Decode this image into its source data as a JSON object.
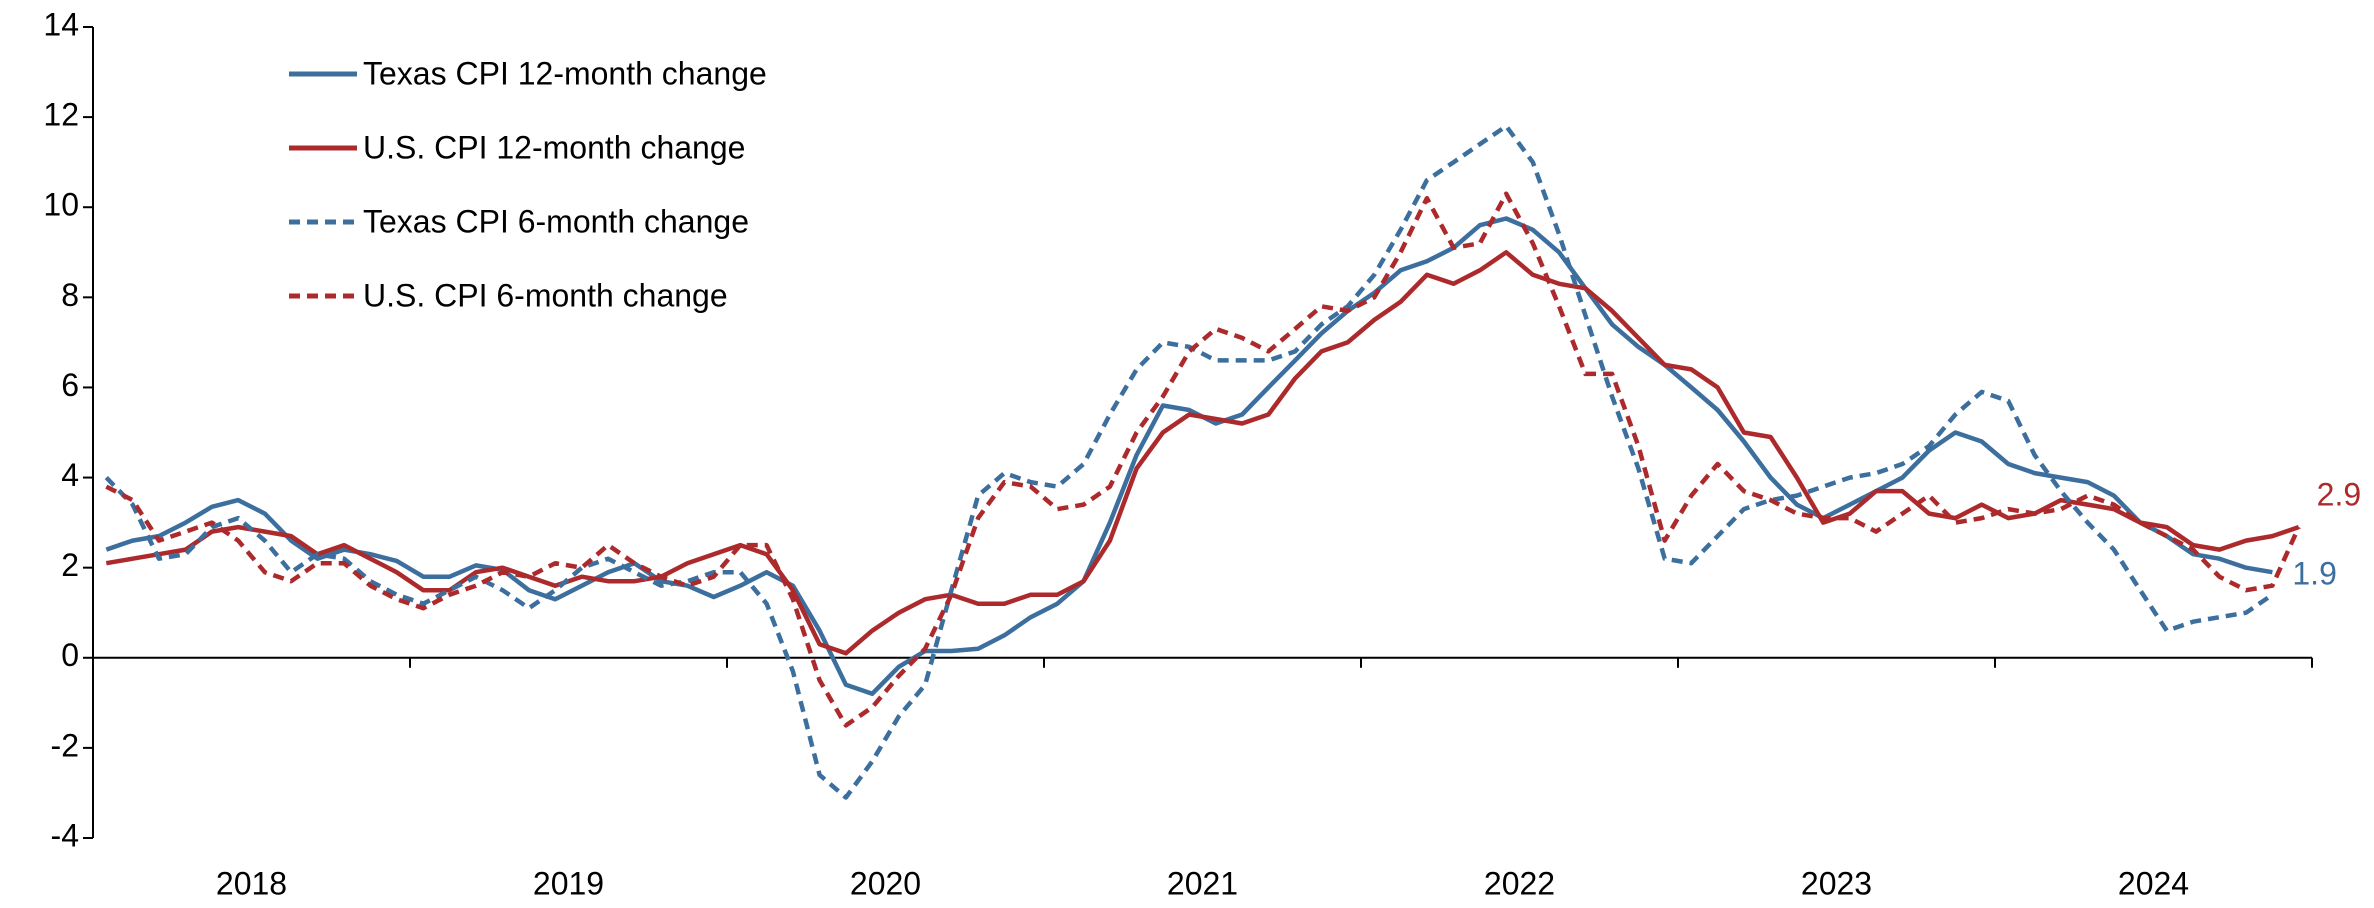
{
  "chart_data": {
    "type": "line",
    "x": [
      2018.042,
      2018.125,
      2018.208,
      2018.292,
      2018.375,
      2018.458,
      2018.542,
      2018.625,
      2018.708,
      2018.792,
      2018.875,
      2018.958,
      2019.042,
      2019.125,
      2019.208,
      2019.292,
      2019.375,
      2019.458,
      2019.542,
      2019.625,
      2019.708,
      2019.792,
      2019.875,
      2019.958,
      2020.042,
      2020.125,
      2020.208,
      2020.292,
      2020.375,
      2020.458,
      2020.542,
      2020.625,
      2020.708,
      2020.792,
      2020.875,
      2020.958,
      2021.042,
      2021.125,
      2021.208,
      2021.292,
      2021.375,
      2021.458,
      2021.542,
      2021.625,
      2021.708,
      2021.792,
      2021.875,
      2021.958,
      2022.042,
      2022.125,
      2022.208,
      2022.292,
      2022.375,
      2022.458,
      2022.542,
      2022.625,
      2022.708,
      2022.792,
      2022.875,
      2022.958,
      2023.042,
      2023.125,
      2023.208,
      2023.292,
      2023.375,
      2023.458,
      2023.542,
      2023.625,
      2023.708,
      2023.792,
      2023.875,
      2023.958,
      2024.042,
      2024.125,
      2024.208,
      2024.292,
      2024.375,
      2024.458,
      2024.542,
      2024.625,
      2024.708,
      2024.792,
      2024.875,
      2024.958
    ],
    "xlim": [
      2018,
      2025
    ],
    "xticks": [
      2018,
      2019,
      2020,
      2021,
      2022,
      2023,
      2024,
      2025
    ],
    "xtick_labels": [
      {
        "value": 2018.5,
        "label": "2018"
      },
      {
        "value": 2019.5,
        "label": "2019"
      },
      {
        "value": 2020.5,
        "label": "2020"
      },
      {
        "value": 2021.5,
        "label": "2021"
      },
      {
        "value": 2022.5,
        "label": "2022"
      },
      {
        "value": 2023.5,
        "label": "2023"
      },
      {
        "value": 2024.5,
        "label": "2024"
      }
    ],
    "ylim": [
      -4,
      14
    ],
    "yticks": [
      -4,
      -2,
      0,
      2,
      4,
      6,
      8,
      10,
      12,
      14
    ],
    "legend": "top-left",
    "series": [
      {
        "name": "Texas CPI 12-month change",
        "color": "#3d6f9e",
        "dashed": false,
        "end_label": "1.9",
        "values": [
          2.4,
          2.6,
          2.7,
          3.0,
          3.35,
          3.5,
          3.2,
          2.6,
          2.2,
          2.4,
          2.3,
          2.15,
          1.8,
          1.8,
          2.05,
          1.95,
          1.5,
          1.3,
          1.6,
          1.9,
          2.1,
          1.7,
          1.6,
          1.35,
          1.6,
          1.9,
          1.6,
          0.6,
          -0.6,
          -0.8,
          -0.2,
          0.15,
          0.15,
          0.2,
          0.5,
          0.9,
          1.2,
          1.7,
          3.0,
          4.5,
          5.6,
          5.5,
          5.2,
          5.4,
          6.0,
          6.6,
          7.2,
          7.7,
          8.1,
          8.6,
          8.8,
          9.1,
          9.6,
          9.75,
          9.5,
          9.0,
          8.2,
          7.4,
          6.9,
          6.5,
          6.0,
          5.5,
          4.8,
          4.0,
          3.4,
          3.1,
          3.4,
          3.7,
          4.0,
          4.6,
          5.0,
          4.8,
          4.3,
          4.1,
          4.0,
          3.9,
          3.6,
          3.0,
          2.7,
          2.3,
          2.2,
          2.0,
          1.9,
          null
        ]
      },
      {
        "name": "U.S. CPI 12-month change",
        "color": "#ad2a2c",
        "dashed": false,
        "end_label": "2.9",
        "values": [
          2.1,
          2.2,
          2.3,
          2.4,
          2.8,
          2.9,
          2.8,
          2.7,
          2.3,
          2.5,
          2.2,
          1.9,
          1.5,
          1.5,
          1.9,
          2.0,
          1.8,
          1.6,
          1.8,
          1.7,
          1.7,
          1.8,
          2.1,
          2.3,
          2.5,
          2.3,
          1.5,
          0.3,
          0.1,
          0.6,
          1.0,
          1.3,
          1.4,
          1.2,
          1.2,
          1.4,
          1.4,
          1.7,
          2.6,
          4.2,
          5.0,
          5.4,
          5.3,
          5.2,
          5.4,
          6.2,
          6.8,
          7.0,
          7.5,
          7.9,
          8.5,
          8.3,
          8.6,
          9.0,
          8.5,
          8.3,
          8.2,
          7.7,
          7.1,
          6.5,
          6.4,
          6.0,
          5.0,
          4.9,
          4.0,
          3.0,
          3.2,
          3.7,
          3.7,
          3.2,
          3.1,
          3.4,
          3.1,
          3.2,
          3.5,
          3.4,
          3.3,
          3.0,
          2.9,
          2.5,
          2.4,
          2.6,
          2.7,
          2.9
        ]
      },
      {
        "name": "Texas CPI 6-month change",
        "color": "#3d6f9e",
        "dashed": true,
        "values": [
          4.0,
          3.4,
          2.2,
          2.3,
          2.9,
          3.1,
          2.6,
          1.9,
          2.3,
          2.2,
          1.7,
          1.4,
          1.2,
          1.5,
          1.8,
          1.5,
          1.1,
          1.5,
          2.0,
          2.2,
          1.9,
          1.6,
          1.7,
          1.9,
          1.9,
          1.2,
          -0.3,
          -2.6,
          -3.1,
          -2.3,
          -1.3,
          -0.6,
          1.5,
          3.6,
          4.1,
          3.9,
          3.8,
          4.3,
          5.4,
          6.4,
          7.0,
          6.9,
          6.6,
          6.6,
          6.6,
          6.8,
          7.4,
          7.8,
          8.5,
          9.5,
          10.6,
          11.0,
          11.4,
          11.8,
          11.0,
          9.4,
          7.6,
          5.8,
          4.2,
          2.2,
          2.1,
          2.7,
          3.3,
          3.5,
          3.6,
          3.8,
          4.0,
          4.1,
          4.3,
          4.7,
          5.4,
          5.9,
          5.7,
          4.5,
          3.7,
          3.0,
          2.4,
          1.5,
          0.6,
          0.8,
          0.9,
          1.0,
          1.4,
          null
        ]
      },
      {
        "name": "U.S. CPI 6-month change",
        "color": "#ad2a2c",
        "dashed": true,
        "values": [
          3.8,
          3.5,
          2.6,
          2.8,
          3.0,
          2.6,
          1.9,
          1.7,
          2.1,
          2.1,
          1.6,
          1.3,
          1.1,
          1.4,
          1.6,
          1.9,
          1.8,
          2.1,
          2.0,
          2.5,
          2.1,
          1.8,
          1.6,
          1.8,
          2.5,
          2.5,
          1.3,
          -0.5,
          -1.5,
          -1.1,
          -0.4,
          0.2,
          1.4,
          3.1,
          3.9,
          3.8,
          3.3,
          3.4,
          3.8,
          5.0,
          5.8,
          6.8,
          7.3,
          7.1,
          6.8,
          7.3,
          7.8,
          7.7,
          8.0,
          9.0,
          10.2,
          9.1,
          9.2,
          10.3,
          9.2,
          7.8,
          6.3,
          6.3,
          4.7,
          2.6,
          3.6,
          4.3,
          3.7,
          3.5,
          3.2,
          3.1,
          3.1,
          2.8,
          3.2,
          3.6,
          3.0,
          3.1,
          3.3,
          3.2,
          3.3,
          3.6,
          3.4,
          3.0,
          2.7,
          2.4,
          1.8,
          1.5,
          1.6,
          2.9
        ]
      }
    ]
  }
}
